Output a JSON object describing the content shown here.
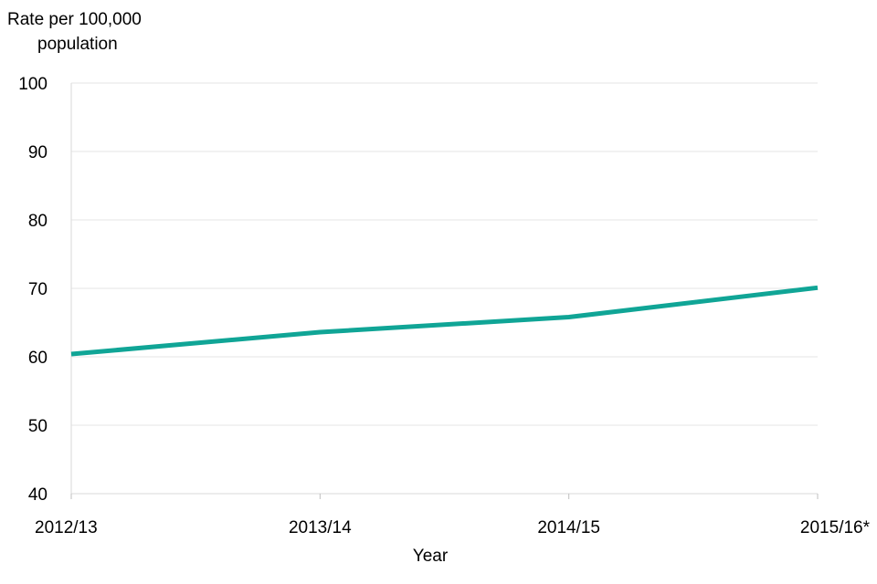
{
  "chart_data": {
    "type": "line",
    "title": "",
    "ylabel_lines": [
      "Rate per 100,000",
      "population"
    ],
    "xlabel": "Year",
    "categories": [
      "2012/13",
      "2013/14",
      "2014/15",
      "2015/16*"
    ],
    "ylim": [
      40,
      100
    ],
    "yticks": [
      "40",
      "50",
      "60",
      "70",
      "80",
      "90",
      "100"
    ],
    "grid": true,
    "legend": "none",
    "series": [
      {
        "values": [
          60.4,
          63.6,
          65.8,
          70.1
        ],
        "color": "#10a596"
      }
    ]
  }
}
